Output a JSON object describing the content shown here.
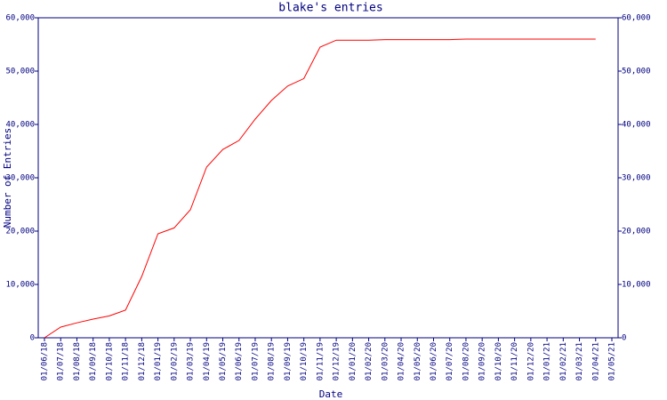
{
  "chart_data": {
    "type": "line",
    "title": "blake's entries",
    "x_label": "Date",
    "y_label": "Number of Entries",
    "categories": [
      "01/06/18",
      "01/07/18",
      "01/08/18",
      "01/09/18",
      "01/10/18",
      "01/11/18",
      "01/12/18",
      "01/01/19",
      "01/02/19",
      "01/03/19",
      "01/04/19",
      "01/05/19",
      "01/06/19",
      "01/07/19",
      "01/08/19",
      "01/09/19",
      "01/10/19",
      "01/11/19",
      "01/12/19",
      "01/01/20",
      "01/02/20",
      "01/03/20",
      "01/04/20",
      "01/05/20",
      "01/06/20",
      "01/07/20",
      "01/08/20",
      "01/09/20",
      "01/10/20",
      "01/11/20",
      "01/12/20",
      "01/01/21",
      "01/02/21",
      "01/03/21",
      "01/04/21",
      "01/05/21"
    ],
    "series": [
      {
        "name": "entries",
        "color": "#ff0000",
        "values": [
          0,
          2000,
          2800,
          3500,
          4100,
          5200,
          11500,
          19500,
          20600,
          24000,
          32000,
          35300,
          37000,
          41000,
          44500,
          47200,
          48600,
          54500,
          55800,
          55800,
          55800,
          55900,
          55900,
          55900,
          55900,
          55900,
          56000,
          56000,
          56000,
          56000,
          56000,
          56000,
          56000,
          56000,
          56000,
          null
        ]
      }
    ],
    "ylim": [
      0,
      60000
    ],
    "yticks": [
      0,
      {
        "value": 10000,
        "label": "10,000"
      },
      {
        "value": 20000,
        "label": "20,000"
      },
      {
        "value": 30000,
        "label": "30,000"
      },
      {
        "value": 40000,
        "label": "40,000"
      },
      {
        "value": 50000,
        "label": "50,000"
      },
      {
        "value": 60000,
        "label": "60,000"
      }
    ]
  }
}
